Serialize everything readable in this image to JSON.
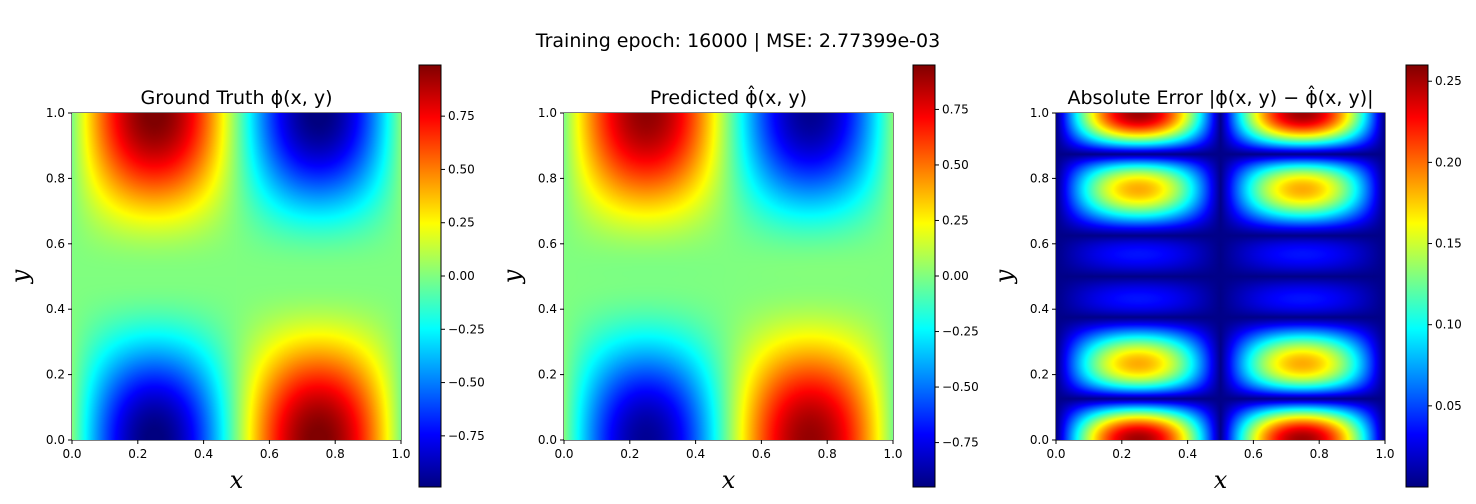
{
  "figure": {
    "suptitle": "Training epoch: 16000 | MSE: 2.77399e-03"
  },
  "chart_data": [
    {
      "type": "heatmap",
      "title": "Ground Truth ϕ(x, y)",
      "xlabel": "x",
      "ylabel": "y",
      "xlim": [
        0,
        1
      ],
      "ylim": [
        0,
        1
      ],
      "x_ticks": [
        "0.0",
        "0.2",
        "0.4",
        "0.6",
        "0.8",
        "1.0"
      ],
      "y_ticks": [
        "0.0",
        "0.2",
        "0.4",
        "0.6",
        "0.8",
        "1.0"
      ],
      "colormap": "jet",
      "colorbar_range": [
        -0.99,
        0.99
      ],
      "colorbar_ticks": [
        "0.75",
        "0.50",
        "0.25",
        "0.00",
        "−0.25",
        "−0.50",
        "−0.75"
      ],
      "colorbar_tick_values": [
        0.75,
        0.5,
        0.25,
        0.0,
        -0.25,
        -0.5,
        -0.75
      ]
    },
    {
      "type": "heatmap",
      "title": "Predicted ϕ̂(x, y)",
      "xlabel": "x",
      "ylabel": "y",
      "xlim": [
        0,
        1
      ],
      "ylim": [
        0,
        1
      ],
      "x_ticks": [
        "0.0",
        "0.2",
        "0.4",
        "0.6",
        "0.8",
        "1.0"
      ],
      "y_ticks": [
        "0.0",
        "0.2",
        "0.4",
        "0.6",
        "0.8",
        "1.0"
      ],
      "colormap": "jet",
      "colorbar_range": [
        -0.95,
        0.95
      ],
      "colorbar_ticks": [
        "0.75",
        "0.50",
        "0.25",
        "0.00",
        "−0.25",
        "−0.50",
        "−0.75"
      ],
      "colorbar_tick_values": [
        0.75,
        0.5,
        0.25,
        0.0,
        -0.25,
        -0.5,
        -0.75
      ]
    },
    {
      "type": "heatmap",
      "title": "Absolute Error |ϕ(x, y) − ϕ̂(x, y)|",
      "xlabel": "x",
      "ylabel": "y",
      "xlim": [
        0,
        1
      ],
      "ylim": [
        0,
        1
      ],
      "x_ticks": [
        "0.0",
        "0.2",
        "0.4",
        "0.6",
        "0.8",
        "1.0"
      ],
      "y_ticks": [
        "0.0",
        "0.2",
        "0.4",
        "0.6",
        "0.8",
        "1.0"
      ],
      "colormap": "jet",
      "colorbar_range": [
        0.0,
        0.26
      ],
      "colorbar_ticks": [
        "0.25",
        "0.20",
        "0.15",
        "0.10",
        "0.05"
      ],
      "colorbar_tick_values": [
        0.25,
        0.2,
        0.15,
        0.1,
        0.05
      ]
    }
  ]
}
